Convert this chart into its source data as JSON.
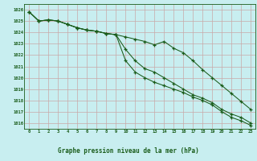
{
  "title": "Graphe pression niveau de la mer (hPa)",
  "background_color": "#c8eef0",
  "grid_color": "#c8a8a8",
  "line_color": "#1a5c1a",
  "title_bg": "#2d7a2d",
  "title_text_color": "#1a5c1a",
  "hours": [
    0,
    1,
    2,
    3,
    4,
    5,
    6,
    7,
    8,
    9,
    10,
    11,
    12,
    13,
    14,
    15,
    16,
    17,
    18,
    19,
    20,
    21,
    22,
    23
  ],
  "series1": [
    1025.8,
    1025.0,
    1025.1,
    1025.0,
    1024.7,
    1024.4,
    1024.2,
    1024.1,
    1023.9,
    1023.8,
    1023.6,
    1023.4,
    1023.2,
    1022.9,
    1023.2,
    1022.6,
    1022.2,
    1021.5,
    1020.7,
    1020.0,
    1019.3,
    1018.6,
    1017.9,
    1017.2
  ],
  "series2": [
    1025.8,
    1025.0,
    1025.1,
    1025.0,
    1024.7,
    1024.4,
    1024.2,
    1024.1,
    1023.9,
    1023.8,
    1022.5,
    1021.5,
    1020.8,
    1020.5,
    1020.0,
    1019.5,
    1019.0,
    1018.5,
    1018.2,
    1017.8,
    1017.2,
    1016.8,
    1016.5,
    1016.0
  ],
  "series3": [
    1025.8,
    1025.0,
    1025.1,
    1025.0,
    1024.7,
    1024.4,
    1024.2,
    1024.1,
    1023.9,
    1023.8,
    1021.5,
    1020.5,
    1020.0,
    1019.6,
    1019.3,
    1019.0,
    1018.7,
    1018.3,
    1018.0,
    1017.6,
    1017.0,
    1016.5,
    1016.2,
    1015.8
  ],
  "ylim": [
    1015.5,
    1026.5
  ],
  "yticks": [
    1016,
    1017,
    1018,
    1019,
    1020,
    1021,
    1022,
    1023,
    1024,
    1025,
    1026
  ]
}
